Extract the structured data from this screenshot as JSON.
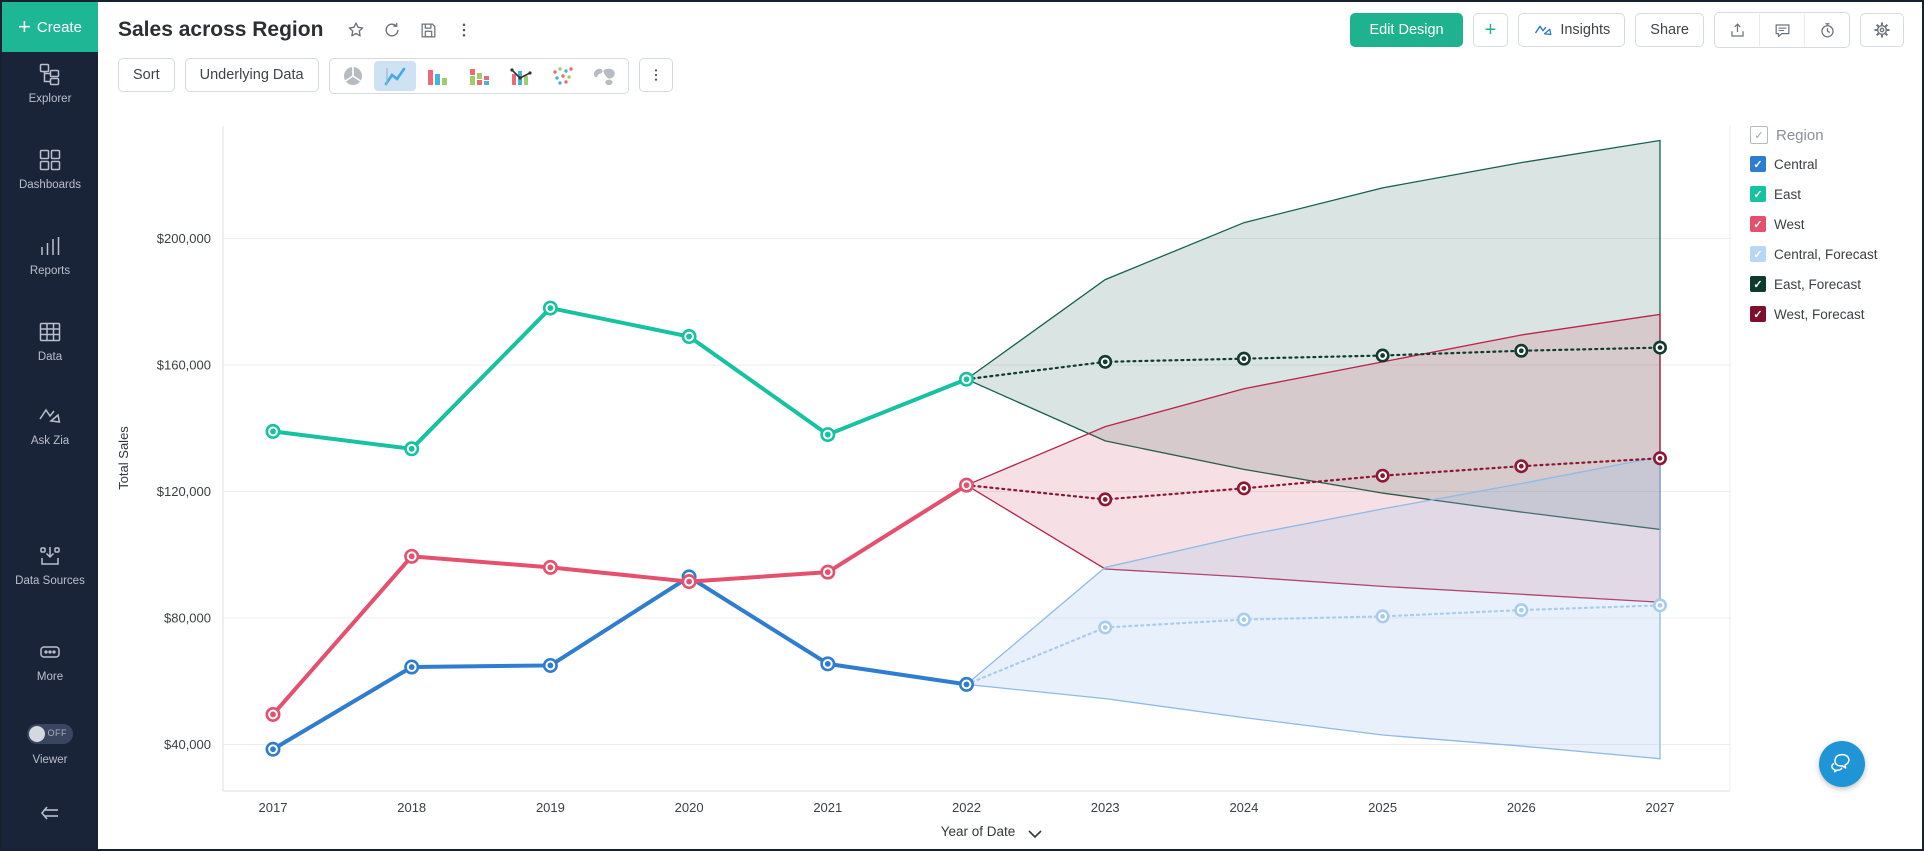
{
  "sidebar": {
    "create_label": "Create",
    "items": [
      {
        "label": "Explorer",
        "icon": "explorer-icon"
      },
      {
        "label": "Dashboards",
        "icon": "dashboards-icon"
      },
      {
        "label": "Reports",
        "icon": "reports-icon"
      },
      {
        "label": "Data",
        "icon": "data-icon"
      },
      {
        "label": "Ask Zia",
        "icon": "ask-zia-icon"
      },
      {
        "label": "Data Sources",
        "icon": "data-sources-icon"
      },
      {
        "label": "More",
        "icon": "more-icon"
      }
    ],
    "viewer_label": "Viewer",
    "viewer_state": "OFF"
  },
  "header": {
    "title": "Sales across Region",
    "title_icons": [
      "star-icon",
      "refresh-icon",
      "save-icon",
      "kebab-icon"
    ],
    "edit_design_label": "Edit Design",
    "add_label": "+",
    "insights_label": "Insights",
    "share_label": "Share",
    "action_icons": [
      "export-icon",
      "comment-icon",
      "history-icon",
      "settings-icon"
    ]
  },
  "toolbar": {
    "sort_label": "Sort",
    "underlying_data_label": "Underlying Data",
    "chart_type_icons": [
      "pie-chart-icon",
      "line-chart-icon",
      "bar-chart-icon",
      "stacked-bar-icon",
      "combo-chart-icon",
      "scatter-plot-icon",
      "map-chart-icon"
    ],
    "selected_chart_type": "line-chart-icon"
  },
  "legend": {
    "title": "Region",
    "items": [
      {
        "label": "Central",
        "color": "#2e7dd1",
        "checked": true
      },
      {
        "label": "East",
        "color": "#16c2a0",
        "checked": true
      },
      {
        "label": "West",
        "color": "#e4506e",
        "checked": true
      },
      {
        "label": "Central, Forecast",
        "color": "#b9d6f2",
        "checked": true
      },
      {
        "label": "East, Forecast",
        "color": "#0f3a2e",
        "checked": true
      },
      {
        "label": "West, Forecast",
        "color": "#7d102d",
        "checked": true
      }
    ]
  },
  "chart_data": {
    "type": "line",
    "title": "Sales across Region",
    "xlabel": "Year of Date",
    "ylabel": "Total Sales",
    "grid": true,
    "legend_position": "right",
    "x": [
      "2017",
      "2018",
      "2019",
      "2020",
      "2021",
      "2022",
      "2023",
      "2024",
      "2025",
      "2026",
      "2027"
    ],
    "yticks": [
      40000,
      80000,
      120000,
      160000,
      200000
    ],
    "ytick_labels": [
      "$40,000",
      "$80,000",
      "$120,000",
      "$160,000",
      "$200,000"
    ],
    "ylim": [
      20000,
      235000
    ],
    "series": [
      {
        "name": "Central",
        "kind": "actual",
        "color": "#2e7dd1",
        "x": [
          "2017",
          "2018",
          "2019",
          "2020",
          "2021",
          "2022"
        ],
        "values": [
          38500,
          64500,
          65000,
          93000,
          65500,
          59000
        ]
      },
      {
        "name": "East",
        "kind": "actual",
        "color": "#16c2a0",
        "x": [
          "2017",
          "2018",
          "2019",
          "2020",
          "2021",
          "2022"
        ],
        "values": [
          139000,
          133500,
          178000,
          169000,
          138000,
          155500
        ]
      },
      {
        "name": "West",
        "kind": "actual",
        "color": "#e4506e",
        "x": [
          "2017",
          "2018",
          "2019",
          "2020",
          "2021",
          "2022"
        ],
        "values": [
          49500,
          99500,
          96000,
          91500,
          94500,
          122000
        ]
      },
      {
        "name": "East, Forecast",
        "kind": "forecast",
        "color": "#123a2f",
        "band_fill": "rgba(23,94,78,0.16)",
        "band_stroke": "#17604f",
        "connect": {
          "x": "2022",
          "value": 155500
        },
        "x": [
          "2023",
          "2024",
          "2025",
          "2026",
          "2027"
        ],
        "values": [
          161000,
          162000,
          163000,
          164500,
          165500
        ],
        "band_x": [
          "2022",
          "2023",
          "2024",
          "2025",
          "2026",
          "2027"
        ],
        "band_upper": [
          155500,
          187000,
          205000,
          216000,
          224000,
          231000
        ],
        "band_lower": [
          155500,
          136000,
          127000,
          119500,
          113500,
          108000
        ]
      },
      {
        "name": "West, Forecast",
        "kind": "forecast",
        "color": "#8e1733",
        "band_fill": "rgba(196,46,82,0.15)",
        "band_stroke": "#b8234a",
        "connect": {
          "x": "2022",
          "value": 122000
        },
        "x": [
          "2023",
          "2024",
          "2025",
          "2026",
          "2027"
        ],
        "values": [
          117500,
          121000,
          125000,
          128000,
          130500
        ],
        "band_x": [
          "2022",
          "2023",
          "2024",
          "2025",
          "2026",
          "2027"
        ],
        "band_upper": [
          122000,
          140500,
          152500,
          161000,
          169500,
          176000
        ],
        "band_lower": [
          122000,
          95500,
          93000,
          90000,
          87500,
          85000
        ]
      },
      {
        "name": "Central, Forecast",
        "kind": "forecast",
        "color": "#a9cced",
        "band_fill": "rgba(151,193,237,0.22)",
        "band_stroke": "#8fb9e6",
        "connect": {
          "x": "2022",
          "value": 59000
        },
        "x": [
          "2023",
          "2024",
          "2025",
          "2026",
          "2027"
        ],
        "values": [
          77000,
          79500,
          80500,
          82500,
          84000
        ],
        "band_x": [
          "2022",
          "2023",
          "2024",
          "2025",
          "2026",
          "2027"
        ],
        "band_upper": [
          59000,
          96000,
          106000,
          114500,
          122500,
          131000
        ],
        "band_lower": [
          59000,
          54500,
          48500,
          43000,
          39500,
          35500
        ]
      }
    ]
  }
}
